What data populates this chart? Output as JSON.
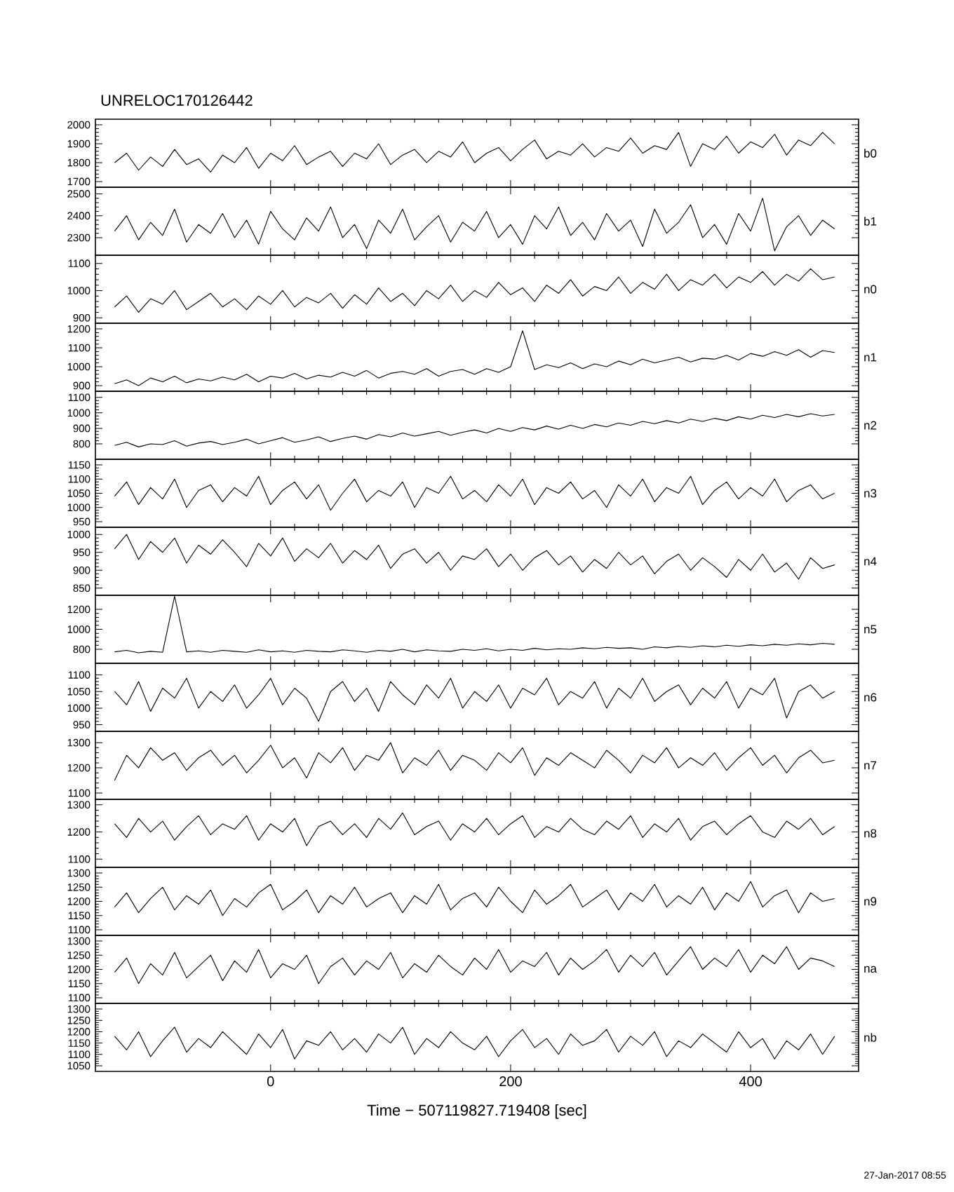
{
  "chart_data": [
    {
      "type": "line",
      "title": "UNRELOC170126442",
      "tick_labels": "y",
      "xlim": [
        -146,
        490
      ],
      "xticks": [
        0,
        200,
        400
      ],
      "ylim": [
        1670,
        2030
      ],
      "yticks": [
        1700,
        1800,
        1900,
        2000
      ],
      "x": [
        -130,
        -120,
        -110,
        -100,
        -90,
        -80,
        -70,
        -60,
        -50,
        -40,
        -30,
        -20,
        -10,
        0,
        10,
        20,
        30,
        40,
        50,
        60,
        70,
        80,
        90,
        100,
        110,
        120,
        130,
        140,
        150,
        160,
        170,
        180,
        190,
        200,
        210,
        220,
        230,
        240,
        250,
        260,
        270,
        280,
        290,
        300,
        310,
        320,
        330,
        340,
        350,
        360,
        370,
        380,
        390,
        400,
        410,
        420,
        430,
        440,
        450,
        460,
        470
      ],
      "series": [
        {
          "name": "b0",
          "color": "#000000",
          "values": [
            1800,
            1850,
            1760,
            1830,
            1780,
            1870,
            1790,
            1820,
            1750,
            1840,
            1800,
            1880,
            1770,
            1850,
            1810,
            1890,
            1790,
            1830,
            1860,
            1780,
            1850,
            1820,
            1900,
            1790,
            1840,
            1870,
            1800,
            1860,
            1830,
            1910,
            1800,
            1850,
            1880,
            1810,
            1870,
            1920,
            1820,
            1860,
            1840,
            1900,
            1830,
            1880,
            1860,
            1930,
            1850,
            1890,
            1870,
            1960,
            1780,
            1900,
            1870,
            1940,
            1850,
            1910,
            1880,
            1950,
            1840,
            1920,
            1890,
            1960,
            1900
          ]
        }
      ]
    },
    {
      "type": "line",
      "tick_labels": "y",
      "xlim": [
        -146,
        490
      ],
      "xticks": [
        0,
        200,
        400
      ],
      "ylim": [
        2220,
        2530
      ],
      "yticks": [
        2300,
        2400,
        2500
      ],
      "x": [
        -130,
        -120,
        -110,
        -100,
        -90,
        -80,
        -70,
        -60,
        -50,
        -40,
        -30,
        -20,
        -10,
        0,
        10,
        20,
        30,
        40,
        50,
        60,
        70,
        80,
        90,
        100,
        110,
        120,
        130,
        140,
        150,
        160,
        170,
        180,
        190,
        200,
        210,
        220,
        230,
        240,
        250,
        260,
        270,
        280,
        290,
        300,
        310,
        320,
        330,
        340,
        350,
        360,
        370,
        380,
        390,
        400,
        410,
        420,
        430,
        440,
        450,
        460,
        470
      ],
      "series": [
        {
          "name": "b1",
          "color": "#000000",
          "values": [
            2330,
            2400,
            2290,
            2370,
            2310,
            2430,
            2280,
            2360,
            2320,
            2410,
            2300,
            2380,
            2270,
            2420,
            2340,
            2290,
            2390,
            2330,
            2440,
            2300,
            2360,
            2250,
            2380,
            2320,
            2430,
            2290,
            2350,
            2400,
            2280,
            2370,
            2330,
            2420,
            2300,
            2360,
            2270,
            2400,
            2340,
            2440,
            2310,
            2370,
            2290,
            2410,
            2330,
            2380,
            2260,
            2430,
            2320,
            2370,
            2450,
            2300,
            2360,
            2270,
            2410,
            2330,
            2480,
            2240,
            2350,
            2400,
            2310,
            2380,
            2340
          ]
        }
      ]
    },
    {
      "type": "line",
      "tick_labels": "y",
      "xlim": [
        -146,
        490
      ],
      "xticks": [
        0,
        200,
        400
      ],
      "ylim": [
        880,
        1130
      ],
      "yticks": [
        900,
        1000,
        1100
      ],
      "x": [
        -130,
        -120,
        -110,
        -100,
        -90,
        -80,
        -70,
        -60,
        -50,
        -40,
        -30,
        -20,
        -10,
        0,
        10,
        20,
        30,
        40,
        50,
        60,
        70,
        80,
        90,
        100,
        110,
        120,
        130,
        140,
        150,
        160,
        170,
        180,
        190,
        200,
        210,
        220,
        230,
        240,
        250,
        260,
        270,
        280,
        290,
        300,
        310,
        320,
        330,
        340,
        350,
        360,
        370,
        380,
        390,
        400,
        410,
        420,
        430,
        440,
        450,
        460,
        470
      ],
      "series": [
        {
          "name": "n0",
          "color": "#000000",
          "values": [
            940,
            980,
            920,
            970,
            950,
            1000,
            930,
            960,
            990,
            940,
            970,
            930,
            980,
            950,
            1000,
            940,
            975,
            955,
            990,
            935,
            985,
            950,
            1010,
            960,
            990,
            945,
            1000,
            970,
            1020,
            960,
            1000,
            975,
            1030,
            985,
            1010,
            960,
            1020,
            990,
            1040,
            980,
            1015,
            1000,
            1050,
            990,
            1030,
            1005,
            1060,
            1000,
            1040,
            1020,
            1060,
            1010,
            1050,
            1030,
            1070,
            1020,
            1060,
            1035,
            1080,
            1040,
            1050
          ]
        }
      ]
    },
    {
      "type": "line",
      "tick_labels": "y",
      "xlim": [
        -146,
        490
      ],
      "xticks": [
        0,
        200,
        400
      ],
      "ylim": [
        870,
        1230
      ],
      "yticks": [
        900,
        1000,
        1100,
        1200
      ],
      "x": [
        -130,
        -120,
        -110,
        -100,
        -90,
        -80,
        -70,
        -60,
        -50,
        -40,
        -30,
        -20,
        -10,
        0,
        10,
        20,
        30,
        40,
        50,
        60,
        70,
        80,
        90,
        100,
        110,
        120,
        130,
        140,
        150,
        160,
        170,
        180,
        190,
        200,
        210,
        220,
        230,
        240,
        250,
        260,
        270,
        280,
        290,
        300,
        310,
        320,
        330,
        340,
        350,
        360,
        370,
        380,
        390,
        400,
        410,
        420,
        430,
        440,
        450,
        460,
        470
      ],
      "series": [
        {
          "name": "n1",
          "color": "#000000",
          "values": [
            910,
            930,
            900,
            940,
            920,
            950,
            915,
            935,
            925,
            945,
            930,
            960,
            920,
            950,
            940,
            965,
            935,
            955,
            945,
            970,
            950,
            980,
            940,
            965,
            975,
            960,
            990,
            950,
            975,
            985,
            960,
            990,
            970,
            1000,
            1190,
            985,
            1010,
            995,
            1020,
            990,
            1015,
            1000,
            1030,
            1010,
            1040,
            1020,
            1035,
            1050,
            1025,
            1045,
            1040,
            1060,
            1035,
            1070,
            1055,
            1080,
            1060,
            1090,
            1050,
            1085,
            1075
          ]
        }
      ]
    },
    {
      "type": "line",
      "tick_labels": "y",
      "xlim": [
        -146,
        490
      ],
      "xticks": [
        0,
        200,
        400
      ],
      "ylim": [
        700,
        1140
      ],
      "yticks": [
        800,
        900,
        1000,
        1100
      ],
      "x": [
        -130,
        -120,
        -110,
        -100,
        -90,
        -80,
        -70,
        -60,
        -50,
        -40,
        -30,
        -20,
        -10,
        0,
        10,
        20,
        30,
        40,
        50,
        60,
        70,
        80,
        90,
        100,
        110,
        120,
        130,
        140,
        150,
        160,
        170,
        180,
        190,
        200,
        210,
        220,
        230,
        240,
        250,
        260,
        270,
        280,
        290,
        300,
        310,
        320,
        330,
        340,
        350,
        360,
        370,
        380,
        390,
        400,
        410,
        420,
        430,
        440,
        450,
        460,
        470
      ],
      "series": [
        {
          "name": "n2",
          "color": "#000000",
          "values": [
            790,
            810,
            780,
            800,
            795,
            820,
            785,
            805,
            815,
            795,
            810,
            830,
            800,
            820,
            840,
            810,
            825,
            845,
            815,
            835,
            850,
            830,
            860,
            845,
            870,
            850,
            865,
            880,
            855,
            875,
            890,
            870,
            900,
            880,
            905,
            890,
            915,
            895,
            920,
            900,
            925,
            910,
            935,
            920,
            945,
            930,
            950,
            935,
            960,
            945,
            965,
            950,
            975,
            960,
            985,
            970,
            990,
            975,
            995,
            980,
            990
          ]
        }
      ]
    },
    {
      "type": "line",
      "tick_labels": "y",
      "xlim": [
        -146,
        490
      ],
      "xticks": [
        0,
        200,
        400
      ],
      "ylim": [
        930,
        1170
      ],
      "yticks": [
        950,
        1000,
        1050,
        1100,
        1150
      ],
      "x": [
        -130,
        -120,
        -110,
        -100,
        -90,
        -80,
        -70,
        -60,
        -50,
        -40,
        -30,
        -20,
        -10,
        0,
        10,
        20,
        30,
        40,
        50,
        60,
        70,
        80,
        90,
        100,
        110,
        120,
        130,
        140,
        150,
        160,
        170,
        180,
        190,
        200,
        210,
        220,
        230,
        240,
        250,
        260,
        270,
        280,
        290,
        300,
        310,
        320,
        330,
        340,
        350,
        360,
        370,
        380,
        390,
        400,
        410,
        420,
        430,
        440,
        450,
        460,
        470
      ],
      "series": [
        {
          "name": "n3",
          "color": "#000000",
          "values": [
            1040,
            1090,
            1010,
            1070,
            1030,
            1100,
            1000,
            1060,
            1080,
            1020,
            1070,
            1040,
            1110,
            1010,
            1060,
            1090,
            1030,
            1080,
            990,
            1050,
            1100,
            1020,
            1060,
            1040,
            1090,
            1000,
            1070,
            1050,
            1110,
            1030,
            1060,
            1020,
            1080,
            1040,
            1100,
            1010,
            1070,
            1050,
            1090,
            1030,
            1060,
            1000,
            1080,
            1040,
            1100,
            1020,
            1070,
            1050,
            1110,
            1010,
            1060,
            1090,
            1030,
            1070,
            1040,
            1100,
            1020,
            1060,
            1080,
            1030,
            1050
          ]
        }
      ]
    },
    {
      "type": "line",
      "tick_labels": "y",
      "xlim": [
        -146,
        490
      ],
      "xticks": [
        0,
        200,
        400
      ],
      "ylim": [
        830,
        1020
      ],
      "yticks": [
        850,
        900,
        950,
        1000
      ],
      "x": [
        -130,
        -120,
        -110,
        -100,
        -90,
        -80,
        -70,
        -60,
        -50,
        -40,
        -30,
        -20,
        -10,
        0,
        10,
        20,
        30,
        40,
        50,
        60,
        70,
        80,
        90,
        100,
        110,
        120,
        130,
        140,
        150,
        160,
        170,
        180,
        190,
        200,
        210,
        220,
        230,
        240,
        250,
        260,
        270,
        280,
        290,
        300,
        310,
        320,
        330,
        340,
        350,
        360,
        370,
        380,
        390,
        400,
        410,
        420,
        430,
        440,
        450,
        460,
        470
      ],
      "series": [
        {
          "name": "n4",
          "color": "#000000",
          "values": [
            960,
            1000,
            930,
            980,
            950,
            990,
            920,
            970,
            945,
            985,
            950,
            910,
            975,
            940,
            990,
            925,
            960,
            935,
            975,
            920,
            955,
            930,
            970,
            905,
            945,
            960,
            920,
            950,
            900,
            940,
            930,
            960,
            910,
            945,
            900,
            935,
            955,
            915,
            940,
            895,
            930,
            905,
            950,
            915,
            940,
            890,
            925,
            945,
            900,
            935,
            910,
            880,
            930,
            900,
            945,
            895,
            920,
            875,
            935,
            905,
            915
          ]
        }
      ]
    },
    {
      "type": "line",
      "tick_labels": "y",
      "xlim": [
        -146,
        490
      ],
      "xticks": [
        0,
        200,
        400
      ],
      "ylim": [
        660,
        1340
      ],
      "yticks": [
        800,
        1000,
        1200
      ],
      "x": [
        -130,
        -120,
        -110,
        -100,
        -90,
        -80,
        -70,
        -60,
        -50,
        -40,
        -30,
        -20,
        -10,
        0,
        10,
        20,
        30,
        40,
        50,
        60,
        70,
        80,
        90,
        100,
        110,
        120,
        130,
        140,
        150,
        160,
        170,
        180,
        190,
        200,
        210,
        220,
        230,
        240,
        250,
        260,
        270,
        280,
        290,
        300,
        310,
        320,
        330,
        340,
        350,
        360,
        370,
        380,
        390,
        400,
        410,
        420,
        430,
        440,
        450,
        460,
        470
      ],
      "series": [
        {
          "name": "n5",
          "color": "#000000",
          "values": [
            775,
            790,
            765,
            780,
            770,
            1330,
            775,
            785,
            770,
            790,
            780,
            770,
            795,
            775,
            785,
            770,
            790,
            780,
            775,
            795,
            785,
            770,
            790,
            780,
            800,
            775,
            795,
            785,
            780,
            800,
            790,
            805,
            785,
            800,
            790,
            810,
            795,
            805,
            800,
            815,
            805,
            820,
            810,
            815,
            800,
            825,
            815,
            830,
            820,
            835,
            825,
            840,
            830,
            845,
            835,
            850,
            840,
            855,
            845,
            860,
            850
          ]
        }
      ]
    },
    {
      "type": "line",
      "tick_labels": "y",
      "xlim": [
        -146,
        490
      ],
      "xticks": [
        0,
        200,
        400
      ],
      "ylim": [
        930,
        1135
      ],
      "yticks": [
        950,
        1000,
        1050,
        1100
      ],
      "x": [
        -130,
        -120,
        -110,
        -100,
        -90,
        -80,
        -70,
        -60,
        -50,
        -40,
        -30,
        -20,
        -10,
        0,
        10,
        20,
        30,
        40,
        50,
        60,
        70,
        80,
        90,
        100,
        110,
        120,
        130,
        140,
        150,
        160,
        170,
        180,
        190,
        200,
        210,
        220,
        230,
        240,
        250,
        260,
        270,
        280,
        290,
        300,
        310,
        320,
        330,
        340,
        350,
        360,
        370,
        380,
        390,
        400,
        410,
        420,
        430,
        440,
        450,
        460,
        470
      ],
      "series": [
        {
          "name": "n6",
          "color": "#000000",
          "values": [
            1050,
            1010,
            1080,
            990,
            1060,
            1030,
            1090,
            1000,
            1050,
            1020,
            1070,
            1000,
            1040,
            1090,
            1010,
            1060,
            1030,
            960,
            1050,
            1080,
            1020,
            1060,
            990,
            1080,
            1040,
            1010,
            1070,
            1030,
            1090,
            1000,
            1050,
            1020,
            1070,
            1000,
            1060,
            1040,
            1090,
            1010,
            1050,
            1030,
            1080,
            1000,
            1060,
            1030,
            1090,
            1020,
            1050,
            1070,
            1010,
            1060,
            1030,
            1080,
            1000,
            1060,
            1040,
            1090,
            970,
            1050,
            1070,
            1030,
            1050
          ]
        }
      ]
    },
    {
      "type": "line",
      "tick_labels": "y",
      "xlim": [
        -146,
        490
      ],
      "xticks": [
        0,
        200,
        400
      ],
      "ylim": [
        1075,
        1345
      ],
      "yticks": [
        1100,
        1200,
        1300
      ],
      "x": [
        -130,
        -120,
        -110,
        -100,
        -90,
        -80,
        -70,
        -60,
        -50,
        -40,
        -30,
        -20,
        -10,
        0,
        10,
        20,
        30,
        40,
        50,
        60,
        70,
        80,
        90,
        100,
        110,
        120,
        130,
        140,
        150,
        160,
        170,
        180,
        190,
        200,
        210,
        220,
        230,
        240,
        250,
        260,
        270,
        280,
        290,
        300,
        310,
        320,
        330,
        340,
        350,
        360,
        370,
        380,
        390,
        400,
        410,
        420,
        430,
        440,
        450,
        460,
        470
      ],
      "series": [
        {
          "name": "n7",
          "color": "#000000",
          "values": [
            1150,
            1250,
            1200,
            1280,
            1230,
            1260,
            1190,
            1240,
            1270,
            1210,
            1250,
            1180,
            1230,
            1290,
            1200,
            1240,
            1160,
            1260,
            1220,
            1280,
            1190,
            1250,
            1230,
            1300,
            1180,
            1240,
            1210,
            1270,
            1190,
            1250,
            1230,
            1190,
            1260,
            1220,
            1280,
            1170,
            1240,
            1210,
            1260,
            1230,
            1200,
            1270,
            1230,
            1180,
            1250,
            1220,
            1280,
            1200,
            1240,
            1210,
            1260,
            1190,
            1240,
            1280,
            1210,
            1250,
            1180,
            1240,
            1270,
            1220,
            1230
          ]
        }
      ]
    },
    {
      "type": "line",
      "tick_labels": "y",
      "xlim": [
        -146,
        490
      ],
      "xticks": [
        0,
        200,
        400
      ],
      "ylim": [
        1070,
        1320
      ],
      "yticks": [
        1100,
        1200,
        1300
      ],
      "x": [
        -130,
        -120,
        -110,
        -100,
        -90,
        -80,
        -70,
        -60,
        -50,
        -40,
        -30,
        -20,
        -10,
        0,
        10,
        20,
        30,
        40,
        50,
        60,
        70,
        80,
        90,
        100,
        110,
        120,
        130,
        140,
        150,
        160,
        170,
        180,
        190,
        200,
        210,
        220,
        230,
        240,
        250,
        260,
        270,
        280,
        290,
        300,
        310,
        320,
        330,
        340,
        350,
        360,
        370,
        380,
        390,
        400,
        410,
        420,
        430,
        440,
        450,
        460,
        470
      ],
      "series": [
        {
          "name": "n8",
          "color": "#000000",
          "values": [
            1230,
            1180,
            1250,
            1200,
            1240,
            1170,
            1220,
            1260,
            1190,
            1230,
            1210,
            1260,
            1170,
            1230,
            1200,
            1250,
            1150,
            1220,
            1240,
            1190,
            1230,
            1180,
            1250,
            1210,
            1270,
            1190,
            1220,
            1240,
            1170,
            1230,
            1200,
            1250,
            1190,
            1230,
            1260,
            1180,
            1220,
            1200,
            1250,
            1210,
            1190,
            1240,
            1210,
            1260,
            1180,
            1230,
            1200,
            1250,
            1170,
            1220,
            1240,
            1190,
            1230,
            1260,
            1200,
            1180,
            1240,
            1210,
            1250,
            1190,
            1220
          ]
        }
      ]
    },
    {
      "type": "line",
      "tick_labels": "y",
      "xlim": [
        -146,
        490
      ],
      "xticks": [
        0,
        200,
        400
      ],
      "ylim": [
        1080,
        1320
      ],
      "yticks": [
        1100,
        1150,
        1200,
        1250,
        1300
      ],
      "x": [
        -130,
        -120,
        -110,
        -100,
        -90,
        -80,
        -70,
        -60,
        -50,
        -40,
        -30,
        -20,
        -10,
        0,
        10,
        20,
        30,
        40,
        50,
        60,
        70,
        80,
        90,
        100,
        110,
        120,
        130,
        140,
        150,
        160,
        170,
        180,
        190,
        200,
        210,
        220,
        230,
        240,
        250,
        260,
        270,
        280,
        290,
        300,
        310,
        320,
        330,
        340,
        350,
        360,
        370,
        380,
        390,
        400,
        410,
        420,
        430,
        440,
        450,
        460,
        470
      ],
      "series": [
        {
          "name": "n9",
          "color": "#000000",
          "values": [
            1180,
            1230,
            1160,
            1210,
            1250,
            1170,
            1220,
            1190,
            1240,
            1150,
            1210,
            1180,
            1230,
            1260,
            1170,
            1200,
            1240,
            1160,
            1220,
            1190,
            1250,
            1180,
            1210,
            1230,
            1160,
            1220,
            1190,
            1260,
            1170,
            1210,
            1230,
            1180,
            1250,
            1200,
            1160,
            1240,
            1190,
            1220,
            1260,
            1180,
            1210,
            1240,
            1170,
            1230,
            1200,
            1260,
            1180,
            1220,
            1190,
            1250,
            1170,
            1230,
            1200,
            1270,
            1180,
            1220,
            1240,
            1160,
            1230,
            1200,
            1210
          ]
        }
      ]
    },
    {
      "type": "line",
      "tick_labels": "y",
      "xlim": [
        -146,
        490
      ],
      "xticks": [
        0,
        200,
        400
      ],
      "ylim": [
        1080,
        1320
      ],
      "yticks": [
        1100,
        1150,
        1200,
        1250,
        1300
      ],
      "x": [
        -130,
        -120,
        -110,
        -100,
        -90,
        -80,
        -70,
        -60,
        -50,
        -40,
        -30,
        -20,
        -10,
        0,
        10,
        20,
        30,
        40,
        50,
        60,
        70,
        80,
        90,
        100,
        110,
        120,
        130,
        140,
        150,
        160,
        170,
        180,
        190,
        200,
        210,
        220,
        230,
        240,
        250,
        260,
        270,
        280,
        290,
        300,
        310,
        320,
        330,
        340,
        350,
        360,
        370,
        380,
        390,
        400,
        410,
        420,
        430,
        440,
        450,
        460,
        470
      ],
      "series": [
        {
          "name": "na",
          "color": "#000000",
          "values": [
            1190,
            1240,
            1150,
            1220,
            1180,
            1260,
            1170,
            1210,
            1250,
            1160,
            1230,
            1190,
            1270,
            1170,
            1220,
            1200,
            1250,
            1150,
            1210,
            1240,
            1180,
            1230,
            1200,
            1260,
            1170,
            1220,
            1190,
            1250,
            1210,
            1180,
            1240,
            1200,
            1270,
            1190,
            1230,
            1210,
            1260,
            1180,
            1240,
            1200,
            1230,
            1270,
            1190,
            1250,
            1210,
            1260,
            1180,
            1230,
            1280,
            1200,
            1240,
            1210,
            1270,
            1190,
            1250,
            1220,
            1280,
            1200,
            1240,
            1230,
            1210
          ]
        }
      ]
    },
    {
      "type": "line",
      "xlabel": "Time − 507119827.719408 [sec]",
      "annotations": [
        "27-Jan-2017 08:55"
      ],
      "xlim": [
        -146,
        490
      ],
      "xticks": [
        0,
        200,
        400
      ],
      "ylim": [
        1025,
        1325
      ],
      "yticks": [
        1050,
        1100,
        1150,
        1200,
        1250,
        1300
      ],
      "x": [
        -130,
        -120,
        -110,
        -100,
        -90,
        -80,
        -70,
        -60,
        -50,
        -40,
        -30,
        -20,
        -10,
        0,
        10,
        20,
        30,
        40,
        50,
        60,
        70,
        80,
        90,
        100,
        110,
        120,
        130,
        140,
        150,
        160,
        170,
        180,
        190,
        200,
        210,
        220,
        230,
        240,
        250,
        260,
        270,
        280,
        290,
        300,
        310,
        320,
        330,
        340,
        350,
        360,
        370,
        380,
        390,
        400,
        410,
        420,
        430,
        440,
        450,
        460,
        470
      ],
      "series": [
        {
          "name": "nb",
          "color": "#000000",
          "values": [
            1180,
            1120,
            1200,
            1090,
            1160,
            1220,
            1110,
            1170,
            1130,
            1200,
            1150,
            1100,
            1190,
            1130,
            1210,
            1080,
            1160,
            1140,
            1200,
            1120,
            1170,
            1110,
            1190,
            1150,
            1220,
            1100,
            1170,
            1130,
            1200,
            1150,
            1120,
            1180,
            1090,
            1160,
            1210,
            1130,
            1170,
            1100,
            1190,
            1140,
            1160,
            1210,
            1110,
            1180,
            1140,
            1200,
            1090,
            1160,
            1130,
            1190,
            1150,
            1110,
            1200,
            1130,
            1170,
            1080,
            1160,
            1120,
            1190,
            1100,
            1180
          ]
        }
      ]
    }
  ]
}
